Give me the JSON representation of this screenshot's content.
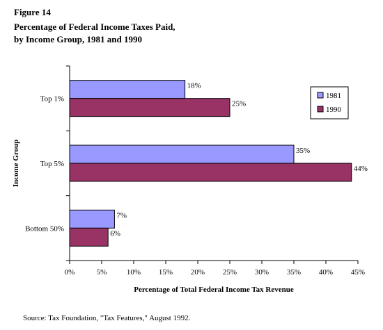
{
  "figure_label": "Figure 14",
  "title_lines": [
    "Percentage of Federal Income Taxes Paid,",
    "by Income Group, 1981 and 1990"
  ],
  "source": "Source: Tax Foundation, \"Tax Features,\" August 1992.",
  "chart_data": {
    "type": "bar",
    "orientation": "horizontal",
    "title": "Percentage of Federal Income Taxes Paid, by Income Group, 1981 and 1990",
    "xlabel": "Percentage of Total Federal Income Tax Revenue",
    "ylabel": "Income Group",
    "categories": [
      "Top 1%",
      "Top 5%",
      "Bottom 50%"
    ],
    "series": [
      {
        "name": "1981",
        "values": [
          18,
          35,
          7
        ],
        "labels": [
          "18%",
          "35%",
          "7%"
        ],
        "color": "#9999ff"
      },
      {
        "name": "1990",
        "values": [
          25,
          44,
          6
        ],
        "labels": [
          "25%",
          "44%",
          "6%"
        ],
        "color": "#993366"
      }
    ],
    "xlim": [
      0,
      45
    ],
    "xticks": [
      0,
      5,
      10,
      15,
      20,
      25,
      30,
      35,
      40,
      45
    ],
    "xtick_labels": [
      "0%",
      "5%",
      "10%",
      "15%",
      "20%",
      "25%",
      "30%",
      "35%",
      "40%",
      "45%"
    ],
    "grid": false,
    "legend_position": "right"
  }
}
